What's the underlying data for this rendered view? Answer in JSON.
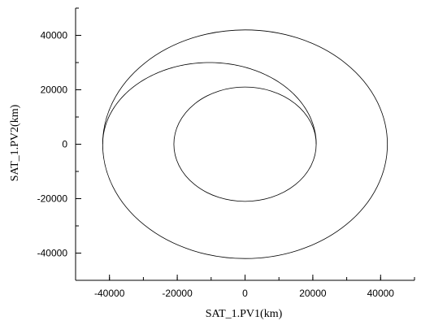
{
  "chart_data": {
    "type": "line",
    "xlabel": "SAT_1.PV1(km)",
    "ylabel": "SAT_1.PV2(km)",
    "xlim": [
      -50000,
      50000
    ],
    "ylim": [
      -50000,
      50000
    ],
    "x_ticks": [
      -40000,
      -20000,
      0,
      20000,
      40000
    ],
    "y_ticks": [
      -40000,
      -20000,
      0,
      20000,
      40000
    ],
    "x_tick_labels": [
      "-40000",
      "-20000",
      "0",
      "20000",
      "40000"
    ],
    "y_tick_labels": [
      "-40000",
      "-20000",
      "0",
      "20000",
      "40000"
    ],
    "minor_step": 10000,
    "grid": false,
    "line_color": "#000000",
    "curves": [
      {
        "kind": "circle",
        "cx": 0,
        "cy": 0,
        "r": 21000,
        "description_value": "inner circular orbit"
      },
      {
        "kind": "transfer_upper",
        "points": [
          [
            21000,
            0
          ],
          [
            15000,
            17000
          ],
          [
            0,
            28000
          ],
          [
            -10000,
            30000
          ],
          [
            -20000,
            26000
          ],
          [
            -35000,
            15000
          ],
          [
            -42000,
            4000
          ],
          [
            -42000,
            0
          ]
        ]
      },
      {
        "kind": "ellipse",
        "cx": 0,
        "cy": 0,
        "rx": 42000,
        "ry": 42000
      }
    ]
  }
}
